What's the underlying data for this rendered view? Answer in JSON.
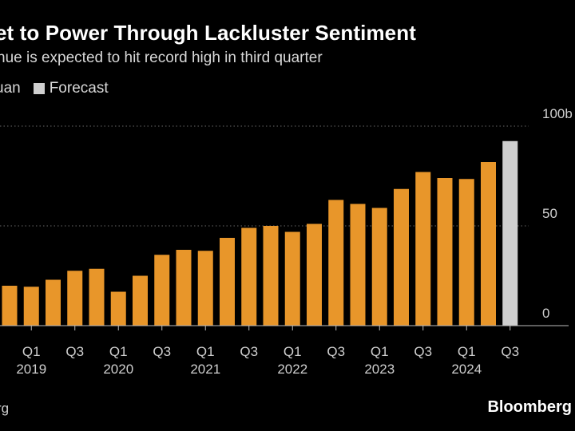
{
  "header": {
    "title": "et to Power Through Lackluster Sentiment",
    "subtitle": "nue is expected to hit record high in third quarter"
  },
  "legend": {
    "actual_label": "uan",
    "forecast_label": "Forecast"
  },
  "footer": {
    "source": "rg",
    "brand": "Bloomberg"
  },
  "colors": {
    "actual": "#e8962a",
    "forecast": "#cfcfcf",
    "grid": "#666666",
    "axis": "#bbbbbb",
    "text": "#cfcfcf"
  },
  "chart_data": {
    "type": "bar",
    "title": "et to Power Through Lackluster Sentiment",
    "subtitle": "nue is expected to hit record high in third quarter",
    "ylabel": "",
    "ylim": [
      0,
      100
    ],
    "yticks": [
      {
        "value": 0,
        "label": "0"
      },
      {
        "value": 50,
        "label": "50"
      },
      {
        "value": 100,
        "label": "100b"
      }
    ],
    "grid": true,
    "quarter_labels": [
      "Q1",
      "Q3",
      "Q1",
      "Q3",
      "Q1",
      "Q3",
      "Q1",
      "Q3",
      "Q1",
      "Q3",
      "Q1",
      "Q3"
    ],
    "year_labels": [
      "2019",
      "2020",
      "2021",
      "2022",
      "2023",
      "2024"
    ],
    "categories": [
      "2018Q4",
      "2019Q1",
      "2019Q2",
      "2019Q3",
      "2019Q4",
      "2020Q1",
      "2020Q2",
      "2020Q3",
      "2020Q4",
      "2021Q1",
      "2021Q2",
      "2021Q3",
      "2021Q4",
      "2022Q1",
      "2022Q2",
      "2022Q3",
      "2022Q4",
      "2023Q1",
      "2023Q2",
      "2023Q3",
      "2023Q4",
      "2024Q1",
      "2024Q2",
      "2024Q3"
    ],
    "series": [
      {
        "name": "uan",
        "values": [
          20,
          19.5,
          23,
          27.5,
          28.5,
          17,
          25,
          35.5,
          38,
          37.5,
          44,
          49,
          50,
          47,
          51,
          63,
          61,
          59,
          68.5,
          77,
          74,
          73.5,
          82,
          null
        ]
      },
      {
        "name": "Forecast",
        "values": [
          null,
          null,
          null,
          null,
          null,
          null,
          null,
          null,
          null,
          null,
          null,
          null,
          null,
          null,
          null,
          null,
          null,
          null,
          null,
          null,
          null,
          null,
          null,
          92.5
        ]
      }
    ]
  }
}
